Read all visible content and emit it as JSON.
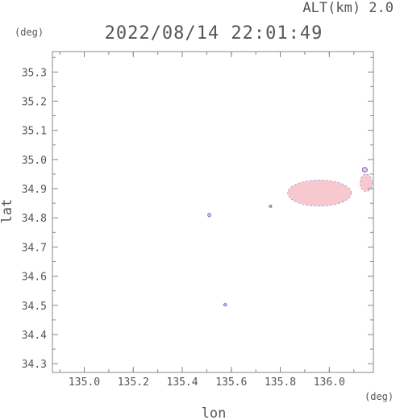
{
  "header": {
    "altitude_label": "ALT(km) 2.0",
    "timestamp": "2022/08/14 22:01:49"
  },
  "chart_data": {
    "type": "heatmap",
    "title": "2022/08/14 22:01:49",
    "xlabel": "lon",
    "ylabel": "lat",
    "xunit": "(deg)",
    "yunit": "(deg)",
    "xlim": [
      134.87,
      136.18
    ],
    "ylim": [
      34.27,
      35.37
    ],
    "xticks": [
      135.0,
      135.2,
      135.4,
      135.6,
      135.8,
      136.0
    ],
    "xtick_labels": [
      "135.0",
      "135.2",
      "135.4",
      "135.6",
      "135.8",
      "136.0"
    ],
    "yticks": [
      34.3,
      34.4,
      34.5,
      34.6,
      34.7,
      34.8,
      34.9,
      35.0,
      35.1,
      35.2,
      35.3
    ],
    "ytick_labels": [
      "34.3",
      "34.4",
      "34.5",
      "34.6",
      "34.7",
      "34.8",
      "34.9",
      "35.0",
      "35.1",
      "35.2",
      "35.3"
    ],
    "grid": false,
    "colors": {
      "echo_fill": "#f7c9cf",
      "echo_edge": "#6a6ad8",
      "axis": "#888888"
    },
    "echoes": [
      {
        "name": "main-cell",
        "lon": 135.96,
        "lat": 34.885,
        "dlon": 0.13,
        "dlat": 0.045
      },
      {
        "name": "east-cell",
        "lon": 136.15,
        "lat": 34.92,
        "dlon": 0.025,
        "dlat": 0.03
      },
      {
        "name": "east-cell-top",
        "lon": 136.145,
        "lat": 34.965,
        "dlon": 0.01,
        "dlat": 0.008
      },
      {
        "name": "speck-north",
        "lon": 135.51,
        "lat": 34.81,
        "dlon": 0.006,
        "dlat": 0.006
      },
      {
        "name": "speck-mid",
        "lon": 135.76,
        "lat": 34.84,
        "dlon": 0.005,
        "dlat": 0.004
      },
      {
        "name": "speck-south",
        "lon": 135.575,
        "lat": 34.502,
        "dlon": 0.006,
        "dlat": 0.004
      }
    ]
  }
}
